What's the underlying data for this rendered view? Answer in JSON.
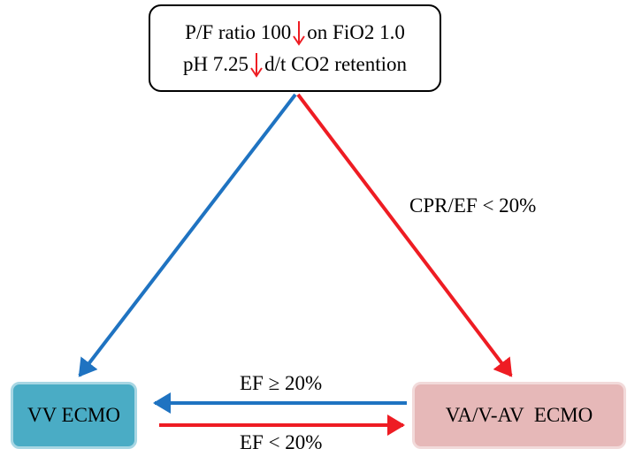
{
  "top_box": {
    "line1_before": "P/F ratio 100",
    "line1_after": "on FiO2 1.0",
    "line2_before": "pH 7.25",
    "line2_after": "d/t CO2 retention"
  },
  "nodes": {
    "vv": "VV ECMO",
    "va": "VA/V-AV  ECMO"
  },
  "edge_labels": {
    "cpr": "CPR/EF < 20%",
    "ef_ge": "EF ≥ 20%",
    "ef_lt": "EF < 20%"
  },
  "colors": {
    "blue_arrow": "#1f73c1",
    "red_arrow": "#ee1c23",
    "vv_fill": "#4aacc5",
    "va_fill": "#e6b8b8"
  },
  "icons": {
    "decrease": "down-arrow-icon"
  }
}
